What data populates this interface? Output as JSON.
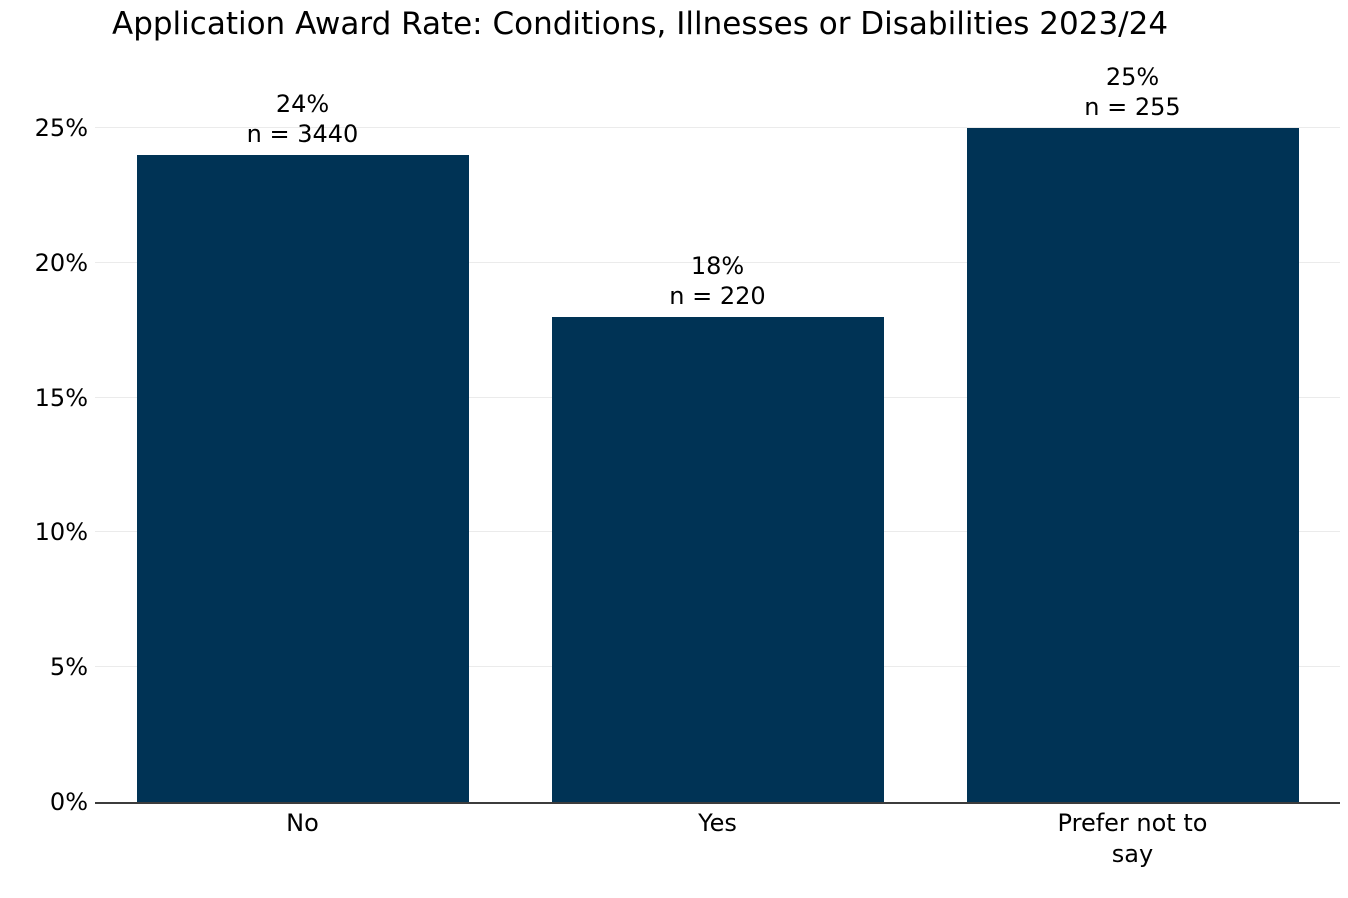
{
  "chart_data": {
    "type": "bar",
    "title": "Application Award Rate: Conditions, Illnesses or Disabilities 2023/24",
    "categories": [
      "No",
      "Yes",
      "Prefer not to say"
    ],
    "values": [
      24,
      18,
      25
    ],
    "value_labels": [
      "24%",
      "18%",
      "25%"
    ],
    "count_labels": [
      "n = 3440",
      "n = 220",
      "n = 255"
    ],
    "counts": [
      3440,
      220,
      255
    ],
    "xlabel": "",
    "ylabel": "",
    "y_ticks": [
      "0%",
      "5%",
      "10%",
      "15%",
      "20%",
      "25%"
    ],
    "y_tick_values": [
      0,
      5,
      10,
      15,
      20,
      25
    ],
    "ylim": [
      0,
      27.5
    ],
    "grid": "horizontal",
    "legend": "none",
    "colors": {
      "bar": "#003355",
      "grid": "#ebebeb",
      "axis": "#3c3c3c",
      "text": "#000000",
      "background": "#ffffff"
    }
  }
}
